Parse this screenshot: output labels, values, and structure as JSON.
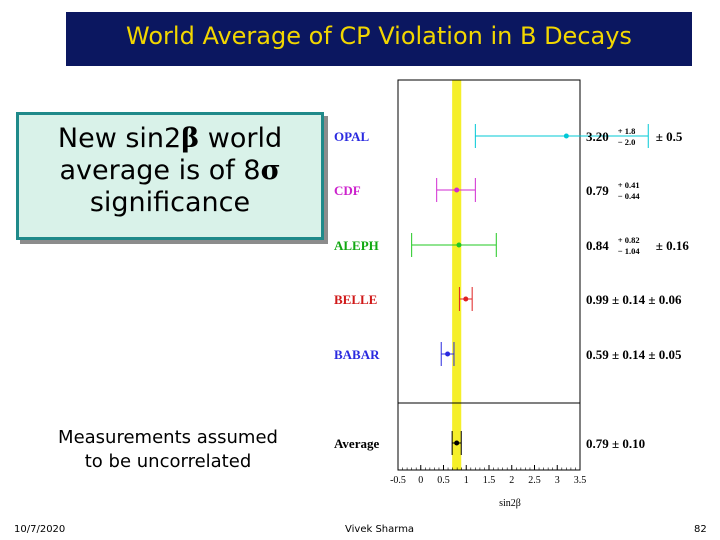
{
  "slide": {
    "title": "World Average of CP Violation in B Decays",
    "callout": {
      "line1_prefix": "New sin2",
      "line1_greek": "β",
      "line1_suffix": " world",
      "line2_prefix": "average is of 8",
      "line2_greek": "σ",
      "line3": "significance"
    },
    "note_line1": "Measurements assumed",
    "note_line2": "to be uncorrelated",
    "footer": {
      "date": "10/7/2020",
      "author": "Vivek Sharma",
      "page": "82"
    }
  },
  "chart_data": {
    "type": "scatter",
    "xlabel": "sin2β",
    "xlim": [
      -0.5,
      3.5
    ],
    "x_ticks": [
      "-0.5",
      "0",
      "0.5",
      "1",
      "1.5",
      "2",
      "2.5",
      "3",
      "3.5"
    ],
    "world_average_band": [
      0.69,
      0.89
    ],
    "band_color": "#f5ef2a",
    "measurements": [
      {
        "name": "OPAL",
        "value": 3.2,
        "err_plus": 1.8,
        "err_minus": 2.0,
        "color": "#00c8d6",
        "label_color": "#2a2ae0",
        "result_main": "3.20",
        "result_sup": "+ 1.8",
        "result_sub": "− 2.0",
        "result_tail": "± 0.5"
      },
      {
        "name": "CDF",
        "value": 0.79,
        "err_plus": 0.41,
        "err_minus": 0.44,
        "color": "#d22ad2",
        "label_color": "#cc22cc",
        "result_main": "0.79",
        "result_sup": "+ 0.41",
        "result_sub": "− 0.44",
        "result_tail": ""
      },
      {
        "name": "ALEPH",
        "value": 0.84,
        "err_plus": 0.82,
        "err_minus": 1.04,
        "color": "#22c822",
        "label_color": "#11a811",
        "result_main": "0.84",
        "result_sup": "+ 0.82",
        "result_sub": "− 1.04",
        "result_tail": "± 0.16"
      },
      {
        "name": "BELLE",
        "value": 0.99,
        "err_plus": 0.14,
        "err_minus": 0.14,
        "color": "#e02222",
        "label_color": "#d01818",
        "result_main": "0.99 ± 0.14 ± 0.06",
        "result_sup": "",
        "result_sub": "",
        "result_tail": ""
      },
      {
        "name": "BABAR",
        "value": 0.59,
        "err_plus": 0.14,
        "err_minus": 0.14,
        "color": "#2a2ae0",
        "label_color": "#2a2ae0",
        "result_main": "0.59 ± 0.14 ± 0.05",
        "result_sup": "",
        "result_sub": "",
        "result_tail": ""
      },
      {
        "name": "Average",
        "value": 0.79,
        "err_plus": 0.1,
        "err_minus": 0.1,
        "color": "#000000",
        "label_color": "#000000",
        "result_main": "0.79 ± 0.10",
        "result_sup": "",
        "result_sub": "",
        "result_tail": ""
      }
    ]
  }
}
